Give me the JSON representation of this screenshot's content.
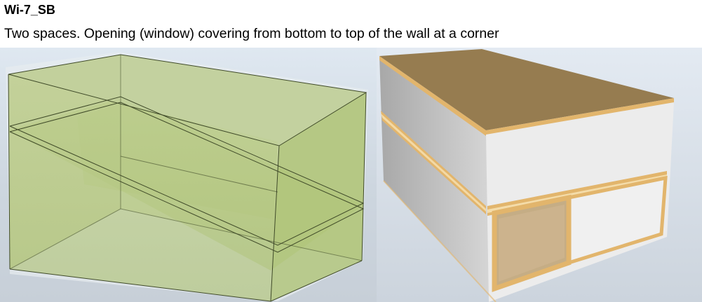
{
  "document": {
    "title": "Wi-7_SB",
    "description": "Two spaces. Opening (window) covering from bottom to top of the wall at a corner"
  },
  "figures": {
    "left": {
      "icon": "translucent-stacked-spaces-3d-view",
      "fill_color": "#b5c984",
      "edge_color": "#3f4a28"
    },
    "right": {
      "icon": "solid-building-with-corner-window-3d-view",
      "roof_color": "#967c50",
      "wall_color": "#e9e9e9",
      "edge_color": "#e2b56c",
      "window_color": "#c5ad85"
    }
  }
}
